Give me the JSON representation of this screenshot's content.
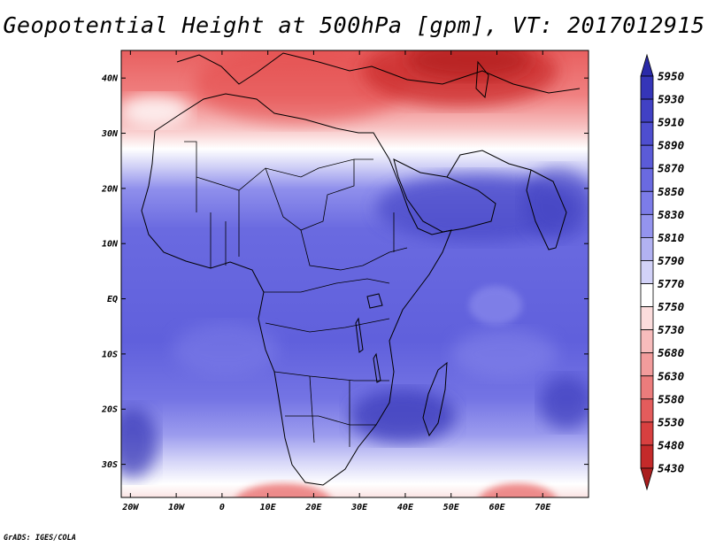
{
  "title": "Geopotential Height at 500hPa [gpm], VT: 2017012915",
  "credit": "GrADS: IGES/COLA",
  "map": {
    "projection": "latlon",
    "lon_range": [
      -22,
      80
    ],
    "lat_range": [
      -36,
      45
    ],
    "x_ticks": [
      "20W",
      "10W",
      "0",
      "10E",
      "20E",
      "30E",
      "40E",
      "50E",
      "60E",
      "70E"
    ],
    "y_ticks": [
      "40N",
      "30N",
      "20N",
      "10N",
      "EQ",
      "10S",
      "20S",
      "30S"
    ],
    "field": "geopotential height at 500hPa",
    "units": "gpm"
  },
  "colorbar": {
    "labels": [
      "5950",
      "5930",
      "5910",
      "5890",
      "5870",
      "5850",
      "5830",
      "5810",
      "5790",
      "5770",
      "5750",
      "5730",
      "5680",
      "5630",
      "5580",
      "5530",
      "5480",
      "5430"
    ],
    "colors": [
      "#2a2aa8",
      "#3535b8",
      "#4141c4",
      "#4e4ecf",
      "#5b5bd8",
      "#6a6ae0",
      "#7c7ce8",
      "#9494ee",
      "#b2b2f2",
      "#d2d2f8",
      "#ffffff",
      "#fbdcdc",
      "#f7bcbc",
      "#f29c9c",
      "#ec7c7c",
      "#e35c5c",
      "#d84040",
      "#c42a2a",
      "#aa1e1e"
    ]
  }
}
